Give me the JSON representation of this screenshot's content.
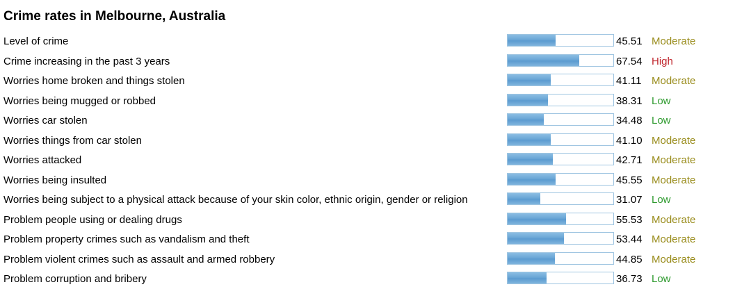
{
  "title": "Crime rates in Melbourne, Australia",
  "level_colors": {
    "Low": "#2e9a2e",
    "Moderate": "#9a8d1e",
    "High": "#c0262d"
  },
  "bar_color": "#6aa6d6",
  "chart_data": {
    "type": "bar",
    "title": "Crime rates in Melbourne, Australia",
    "ylim": [
      0,
      100
    ],
    "categories": [
      "Level of crime",
      "Crime increasing in the past 3 years",
      "Worries home broken and things stolen",
      "Worries being mugged or robbed",
      "Worries car stolen",
      "Worries things from car stolen",
      "Worries attacked",
      "Worries being insulted",
      "Worries being subject to a physical attack because of your skin color, ethnic origin, gender or religion",
      "Problem people using or dealing drugs",
      "Problem property crimes such as vandalism and theft",
      "Problem violent crimes such as assault and armed robbery",
      "Problem corruption and bribery"
    ],
    "values": [
      45.51,
      67.54,
      41.11,
      38.31,
      34.48,
      41.1,
      42.71,
      45.55,
      31.07,
      55.53,
      53.44,
      44.85,
      36.73
    ],
    "value_labels": [
      "45.51",
      "67.54",
      "41.11",
      "38.31",
      "34.48",
      "41.10",
      "42.71",
      "45.55",
      "31.07",
      "55.53",
      "53.44",
      "44.85",
      "36.73"
    ],
    "levels": [
      "Moderate",
      "High",
      "Moderate",
      "Low",
      "Low",
      "Moderate",
      "Moderate",
      "Moderate",
      "Low",
      "Moderate",
      "Moderate",
      "Moderate",
      "Low"
    ]
  }
}
